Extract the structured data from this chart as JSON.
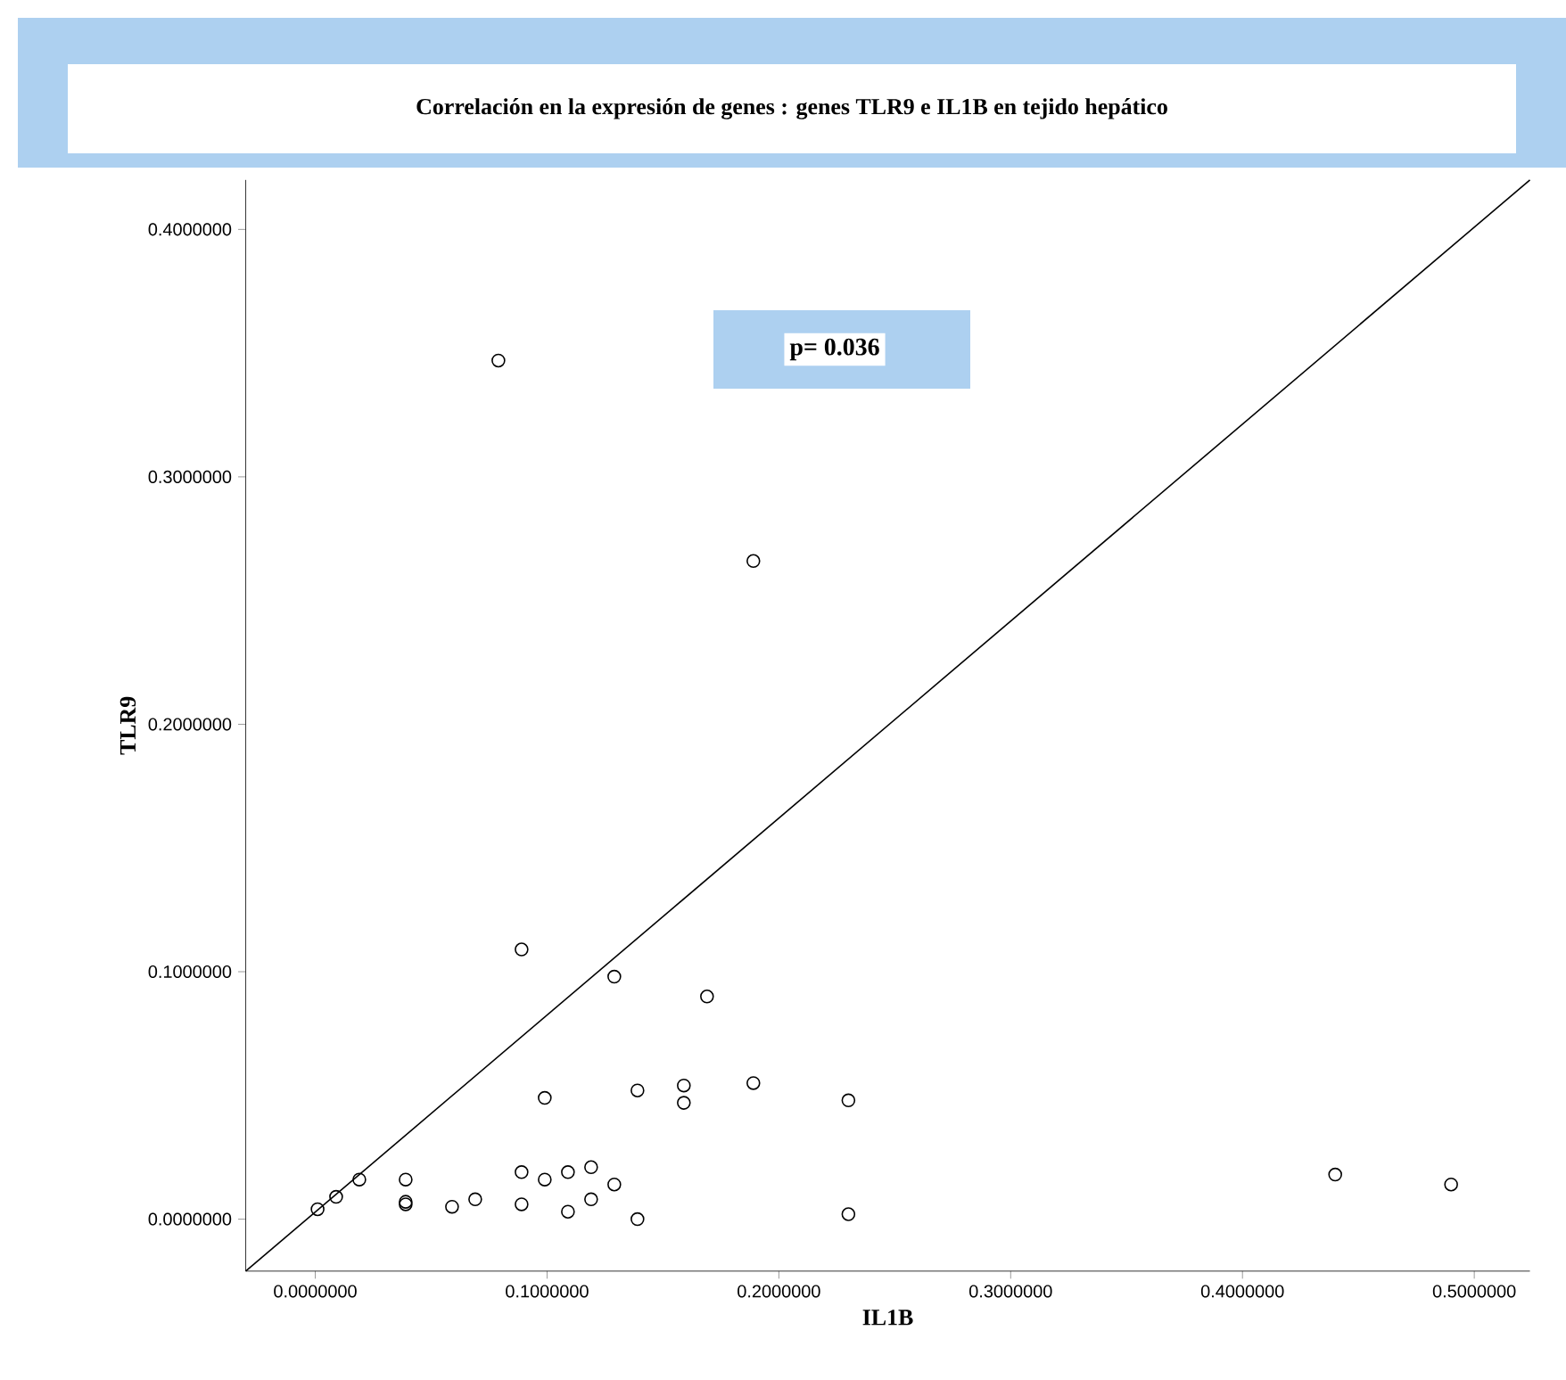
{
  "chart_data": {
    "type": "scatter",
    "title": "Correlación en la expresión de genes : genes TLR9 e IL1B en tejido hepático",
    "xlabel": "IL1B",
    "ylabel": "TLR9",
    "annotations": [
      "p= 0.036"
    ],
    "marker": "circle",
    "xlim": [
      -0.03,
      0.524
    ],
    "ylim": [
      -0.021,
      0.42
    ],
    "xticks": [
      {
        "value": 0,
        "label": "0.0000000"
      },
      {
        "value": 0.1,
        "label": "0.1000000"
      },
      {
        "value": 0.2,
        "label": "0.2000000"
      },
      {
        "value": 0.3,
        "label": "0.3000000"
      },
      {
        "value": 0.4,
        "label": "0.4000000"
      },
      {
        "value": 0.5,
        "label": "0.5000000"
      }
    ],
    "yticks": [
      {
        "value": 0,
        "label": "0.0000000"
      },
      {
        "value": 0.1,
        "label": "0.1000000"
      },
      {
        "value": 0.2,
        "label": "0.2000000"
      },
      {
        "value": 0.3,
        "label": "0.3000000"
      },
      {
        "value": 0.4,
        "label": "0.4000000"
      }
    ],
    "series": [
      {
        "type": "scatter",
        "color": "#000000",
        "x": [
          0.001,
          0.009,
          0.019,
          0.039,
          0.039,
          0.039,
          0.059,
          0.069,
          0.079,
          0.089,
          0.089,
          0.089,
          0.099,
          0.099,
          0.109,
          0.109,
          0.119,
          0.119,
          0.129,
          0.129,
          0.139,
          0.139,
          0.159,
          0.159,
          0.169,
          0.189,
          0.189,
          0.23,
          0.23,
          0.44,
          0.49
        ],
        "values": [
          0.004,
          0.009,
          0.016,
          0.016,
          0.006,
          0.007,
          0.005,
          0.008,
          0.347,
          0.109,
          0.019,
          0.006,
          0.049,
          0.016,
          0.019,
          0.003,
          0.021,
          0.008,
          0.098,
          0.014,
          0.052,
          0.0,
          0.054,
          0.047,
          0.09,
          0.266,
          0.055,
          0.048,
          0.002,
          0.018,
          0.014
        ]
      },
      {
        "type": "line",
        "marker": "none",
        "color": "#000000",
        "x": [
          -0.03,
          0.524
        ],
        "values": [
          -0.021,
          0.42
        ]
      }
    ]
  }
}
